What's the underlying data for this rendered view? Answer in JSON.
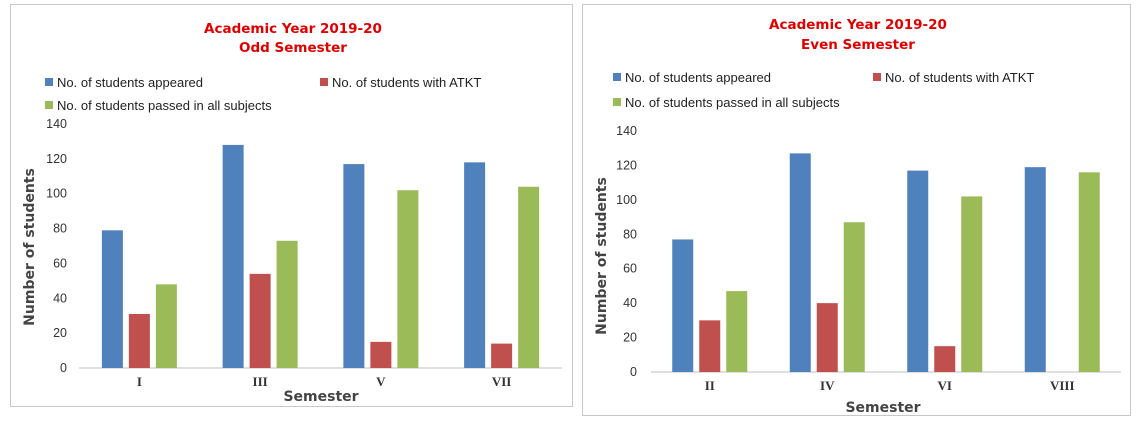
{
  "colors": {
    "appeared": "#4f81bd",
    "atkt": "#c0504d",
    "passed": "#9bbb59",
    "title": "#e00000",
    "axis": "#bfbfbf"
  },
  "legend": {
    "appeared": "No. of students appeared",
    "atkt": "No. of students with ATKT",
    "passed": "No. of students passed in all subjects"
  },
  "chart_data": [
    {
      "type": "bar",
      "title": "Academic Year 2019-20",
      "subtitle": "Odd Semester",
      "xlabel": "Semester",
      "ylabel": "Number of students",
      "ylim": [
        0,
        140
      ],
      "yticks": [
        0,
        20,
        40,
        60,
        80,
        100,
        120,
        140
      ],
      "grid": false,
      "legend_position": "top",
      "categories": [
        "I",
        "III",
        "V",
        "VII"
      ],
      "series": [
        {
          "name": "No. of students appeared",
          "key": "appeared",
          "values": [
            79,
            128,
            117,
            118
          ]
        },
        {
          "name": "No. of students with ATKT",
          "key": "atkt",
          "values": [
            31,
            54,
            15,
            14
          ]
        },
        {
          "name": "No. of students passed in all subjects",
          "key": "passed",
          "values": [
            48,
            73,
            102,
            104
          ]
        }
      ]
    },
    {
      "type": "bar",
      "title": "Academic Year 2019-20",
      "subtitle": "Even Semester",
      "xlabel": "Semester",
      "ylabel": "Number of students",
      "ylim": [
        0,
        140
      ],
      "yticks": [
        0,
        20,
        40,
        60,
        80,
        100,
        120,
        140
      ],
      "grid": false,
      "legend_position": "top",
      "categories": [
        "II",
        "IV",
        "VI",
        "VIII"
      ],
      "series": [
        {
          "name": "No. of students appeared",
          "key": "appeared",
          "values": [
            77,
            127,
            117,
            119
          ]
        },
        {
          "name": "No. of students with ATKT",
          "key": "atkt",
          "values": [
            30,
            40,
            15,
            0
          ]
        },
        {
          "name": "No. of students passed in all subjects",
          "key": "passed",
          "values": [
            47,
            87,
            102,
            116
          ]
        }
      ]
    }
  ]
}
